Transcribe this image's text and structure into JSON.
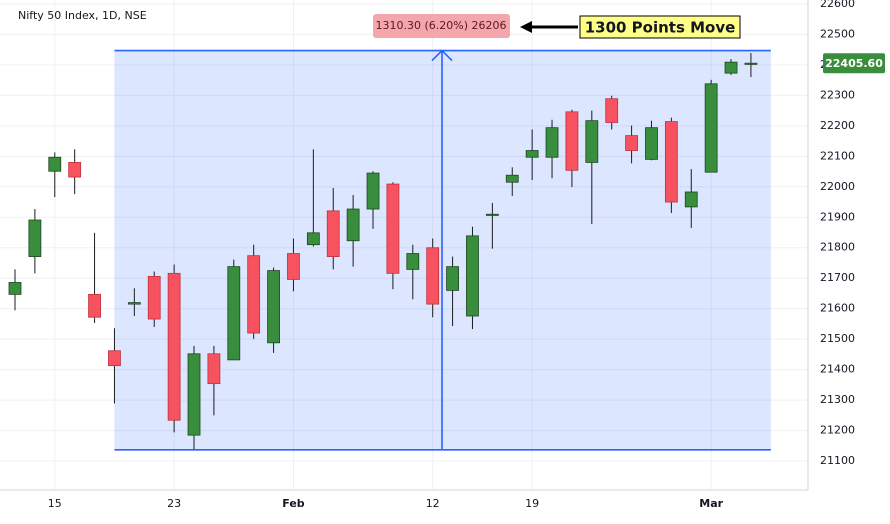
{
  "chart_data": {
    "type": "candlestick",
    "title": "Nifty 50 Index, 1D, NSE",
    "categories": [
      null,
      null,
      "15",
      null,
      null,
      null,
      null,
      null,
      "23",
      null,
      null,
      null,
      null,
      null,
      "Feb",
      null,
      null,
      null,
      null,
      null,
      null,
      "12",
      null,
      null,
      null,
      null,
      "19",
      null,
      null,
      null,
      null,
      null,
      null,
      null,
      null,
      "Mar",
      null,
      null
    ],
    "open": [
      21647,
      21771,
      22051,
      22080,
      21647,
      21462,
      21615,
      21706,
      21716,
      21185,
      21452,
      21432,
      21774,
      21488,
      21781,
      21810,
      21921,
      21823,
      21927,
      22009,
      21729,
      21800,
      21660,
      21576,
      21908,
      22015,
      22097,
      22097,
      22246,
      22080,
      22289,
      22168,
      22090,
      22214,
      21934,
      22048,
      22373,
      22405
    ],
    "high": [
      21729,
      21927,
      22113,
      22123,
      21849,
      21536,
      21667,
      21722,
      21745,
      21478,
      21478,
      21761,
      21810,
      21735,
      21830,
      22123,
      21996,
      21973,
      22051,
      22015,
      21810,
      21830,
      21771,
      21869,
      21947,
      22064,
      22188,
      22220,
      22253,
      22250,
      22299,
      22201,
      22217,
      22227,
      22058,
      22351,
      22419,
      22439
    ],
    "low": [
      21595,
      21716,
      21966,
      21976,
      21553,
      21289,
      21576,
      21540,
      21194,
      21139,
      21250,
      21432,
      21501,
      21455,
      21657,
      21804,
      21729,
      21738,
      21862,
      21664,
      21631,
      21572,
      21543,
      21533,
      21797,
      21970,
      22022,
      22028,
      21999,
      21878,
      22188,
      22077,
      22087,
      21914,
      21865,
      22048,
      22367,
      22360
    ],
    "close": [
      21686,
      21891,
      22097,
      22032,
      21572,
      21413,
      21620,
      21566,
      21234,
      21452,
      21354,
      21738,
      21520,
      21725,
      21696,
      21849,
      21771,
      21927,
      22045,
      21716,
      21781,
      21615,
      21738,
      21839,
      21910,
      22038,
      22119,
      22194,
      22054,
      22217,
      22211,
      22119,
      22194,
      21950,
      21983,
      22338,
      22409,
      22405.6
    ],
    "up_color": "#388e3c",
    "down_color": "#f7525f",
    "ylim": [
      21005,
      22613
    ],
    "yticks": [
      21100,
      21200,
      21300,
      21400,
      21500,
      21600,
      21700,
      21800,
      21900,
      22000,
      22100,
      22200,
      22300,
      22400,
      22500,
      22600
    ],
    "grid": true,
    "last_price": {
      "value": 22405.6,
      "label": "22405.60"
    },
    "measure": {
      "label": "1310.30 (6.20%) 26206",
      "low": 21137,
      "high": 22447
    },
    "callout": "1300 Points Move"
  }
}
